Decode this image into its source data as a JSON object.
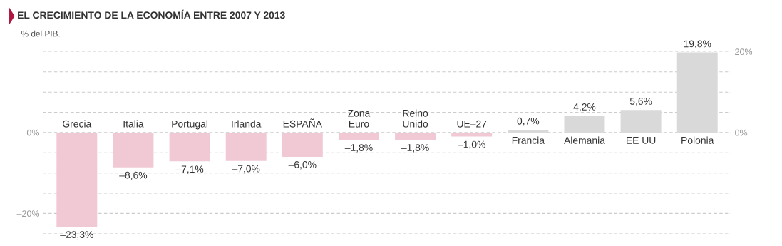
{
  "chart_data": {
    "type": "bar",
    "title": "EL CRECIMIENTO DE LA ECONOMÍA ENTRE 2007 Y 2013",
    "subtitle": "% del PIB.",
    "categories": [
      "Grecia",
      "Italia",
      "Portugal",
      "Irlanda",
      "ESPAÑA",
      "Zona\nEuro",
      "Reino\nUnido",
      "UE–27",
      "Francia",
      "Alemania",
      "EE UU",
      "Polonia"
    ],
    "values": [
      -23.3,
      -8.6,
      -7.1,
      -7.0,
      -6.0,
      -1.8,
      -1.8,
      -1.0,
      0.7,
      4.2,
      5.6,
      19.8
    ],
    "colors": [
      "#f0c9d5",
      "#f0c9d5",
      "#f0c9d5",
      "#f0c9d5",
      "#f0c9d5",
      "#f0c9d5",
      "#f0c9d5",
      "#f0c9d5",
      "#d9d9d9",
      "#d9d9d9",
      "#d9d9d9",
      "#d9d9d9"
    ],
    "value_labels": [
      "–23,3%",
      "–8,6%",
      "–7,1%",
      "–7,0%",
      "–6,0%",
      "–1,8%",
      "–1,8%",
      "–1,0%",
      "0,7%",
      "4,2%",
      "5,6%",
      "19,8%"
    ],
    "ylim": [
      -25,
      20
    ],
    "yticks": [
      {
        "value": -20,
        "label": "–20%"
      },
      {
        "value": 0,
        "label": "0%"
      }
    ],
    "y2lim": [
      -25,
      20
    ],
    "y2ticks": [
      {
        "value": 0,
        "label": "0%"
      },
      {
        "value": 20,
        "label": "20%"
      }
    ],
    "grid": "y"
  }
}
